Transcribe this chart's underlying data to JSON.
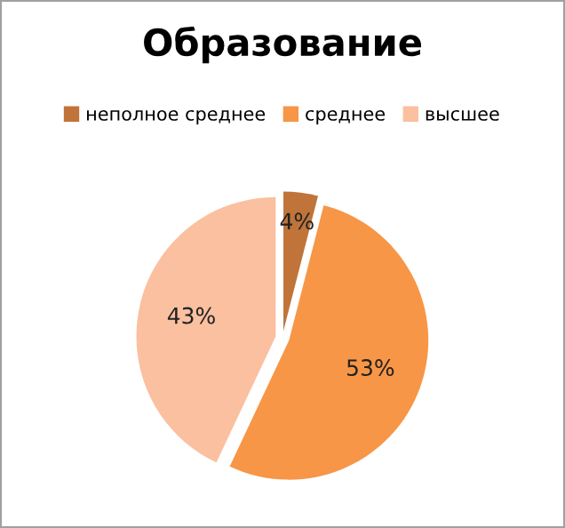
{
  "chart_data": {
    "type": "pie",
    "title": "Образование",
    "categories": [
      "неполное среднее",
      "среднее",
      "высшее"
    ],
    "values": [
      4,
      53,
      43
    ],
    "value_labels": [
      "4%",
      "53%",
      "43%"
    ],
    "colors": [
      "#c0743a",
      "#f79646",
      "#fac0a0"
    ],
    "legend": "top"
  }
}
